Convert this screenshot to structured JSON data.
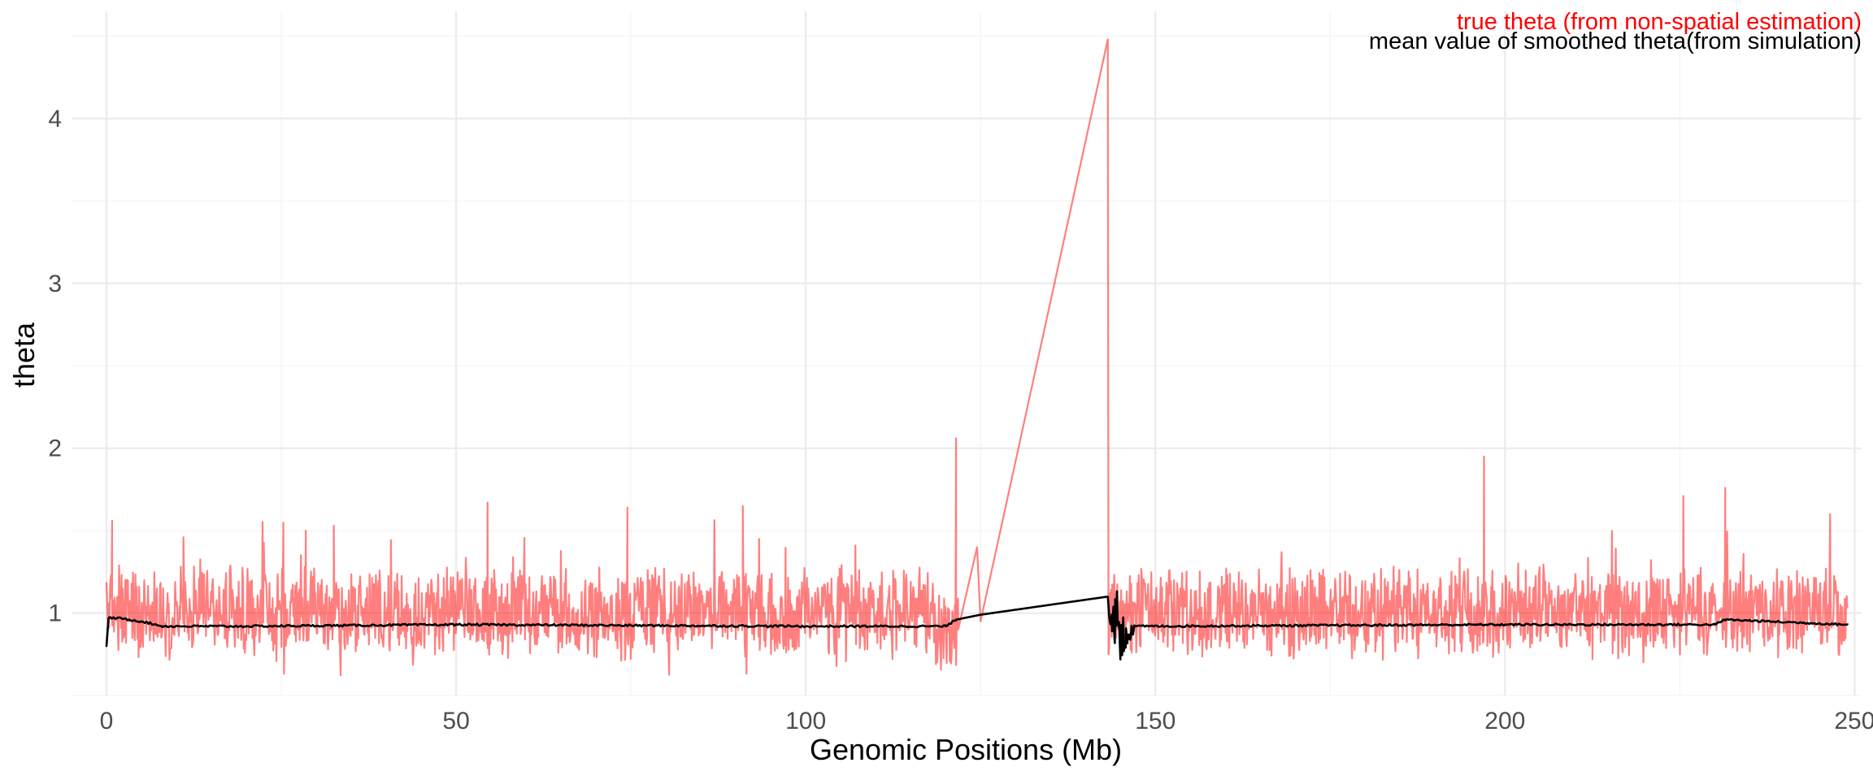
{
  "chart_data": {
    "type": "line",
    "title": "",
    "xlabel": "Genomic Positions (Mb)",
    "ylabel": "theta",
    "xlim": [
      -5,
      251
    ],
    "ylim": [
      0.5,
      4.65
    ],
    "x_ticks": [
      0,
      50,
      100,
      150,
      200,
      250
    ],
    "y_ticks": [
      1,
      2,
      3,
      4
    ],
    "grid": true,
    "legend_position": "top-right",
    "series": [
      {
        "name": "true theta (from non-spatial estimation)",
        "color": "#ff0000",
        "opacity": 0.5,
        "style": "noisy",
        "keypoints": [
          [
            0.0,
            0.9
          ],
          [
            0.8,
            1.56
          ],
          [
            1.5,
            1.1
          ],
          [
            3.0,
            1.3
          ],
          [
            6.0,
            1.0
          ],
          [
            11.0,
            1.46
          ],
          [
            20.0,
            1.0
          ],
          [
            28.5,
            1.5
          ],
          [
            32.5,
            1.53
          ],
          [
            40.0,
            1.0
          ],
          [
            54.5,
            1.67
          ],
          [
            60.0,
            1.0
          ],
          [
            74.5,
            1.64
          ],
          [
            80.0,
            1.0
          ],
          [
            91.0,
            1.65
          ],
          [
            100.0,
            1.0
          ],
          [
            110.0,
            1.0
          ],
          [
            119.5,
            0.85
          ],
          [
            121.5,
            2.06
          ],
          [
            121.8,
            0.9
          ],
          [
            124.5,
            1.4
          ],
          [
            125.0,
            0.95
          ],
          [
            143.2,
            4.48
          ],
          [
            143.3,
            0.75
          ],
          [
            144.0,
            1.3
          ],
          [
            150.0,
            1.0
          ],
          [
            170.0,
            1.0
          ],
          [
            197.0,
            1.95
          ],
          [
            200.0,
            1.0
          ],
          [
            225.5,
            1.71
          ],
          [
            231.5,
            1.76
          ],
          [
            240.0,
            1.0
          ],
          [
            246.5,
            1.6
          ],
          [
            249.0,
            1.0
          ]
        ]
      },
      {
        "name": "mean value of smoothed theta(from simulation)",
        "color": "#000000",
        "opacity": 1,
        "style": "smooth",
        "keypoints": [
          [
            0.0,
            0.8
          ],
          [
            0.3,
            0.97
          ],
          [
            1.5,
            0.97
          ],
          [
            5.0,
            0.95
          ],
          [
            8.0,
            0.92
          ],
          [
            20.0,
            0.92
          ],
          [
            50.0,
            0.93
          ],
          [
            100.0,
            0.92
          ],
          [
            120.0,
            0.92
          ],
          [
            121.5,
            0.96
          ],
          [
            125.0,
            0.99
          ],
          [
            143.2,
            1.1
          ],
          [
            143.5,
            0.95
          ],
          [
            144.5,
            1.13
          ],
          [
            145.0,
            0.72
          ],
          [
            147.0,
            0.92
          ],
          [
            200.0,
            0.93
          ],
          [
            230.0,
            0.93
          ],
          [
            231.5,
            0.96
          ],
          [
            249.0,
            0.93
          ]
        ]
      }
    ]
  }
}
